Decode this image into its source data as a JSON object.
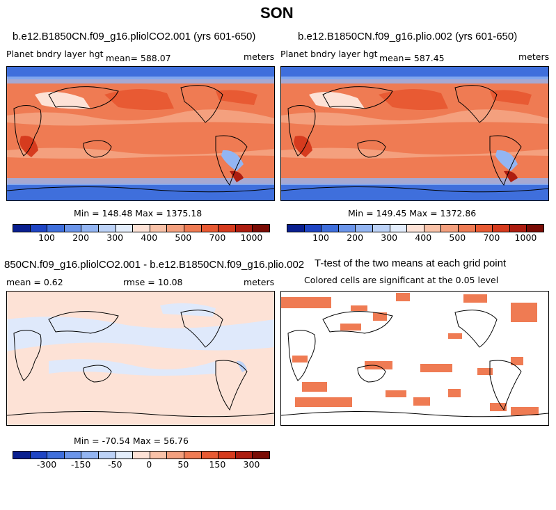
{
  "title": "SON",
  "panels": {
    "top_left": {
      "title": "b.e12.B1850CN.f09_g16.pliolCO2.001 (yrs 601-650)",
      "variable": "Planet bndry layer hgt",
      "mean": "mean= 588.07",
      "units": "meters",
      "minmax": "Min = 148.48 Max = 1375.18"
    },
    "top_right": {
      "title": "b.e12.B1850CN.f09_g16.plio.002 (yrs 601-650)",
      "variable": "Planet bndry layer hgt",
      "mean": "mean= 587.45",
      "units": "meters",
      "minmax": "Min = 149.45 Max = 1372.86"
    },
    "bottom_left": {
      "title": "850CN.f09_g16.pliolCO2.001 - b.e12.B1850CN.f09_g16.plio.002",
      "mean": "mean =    0.62",
      "rmse": "rmse =   10.08",
      "units": "meters",
      "minmax": "Min = -70.54 Max =  56.76"
    },
    "bottom_right": {
      "title": "T-test of the two means at each grid point",
      "subtitle": "Colored cells are significant at the 0.05 level"
    }
  },
  "colorbars": {
    "abs_colors": [
      "#0a1f8f",
      "#1f45c4",
      "#3f6fdc",
      "#6b95ea",
      "#93b5f2",
      "#bcd2f7",
      "#e3edfb",
      "#fde2d6",
      "#f9c2a8",
      "#f4a07e",
      "#ef7b53",
      "#e85a33",
      "#d63b1e",
      "#ad1d10",
      "#7a0c05"
    ],
    "abs_labels": [
      "100",
      "200",
      "300",
      "400",
      "500",
      "700",
      "1000"
    ],
    "diff_colors": [
      "#0a1f8f",
      "#1f45c4",
      "#3f6fdc",
      "#6b95ea",
      "#93b5f2",
      "#bcd2f7",
      "#e3edfb",
      "#fde2d6",
      "#f9c2a8",
      "#f4a07e",
      "#ef7b53",
      "#e85a33",
      "#d63b1e",
      "#ad1d10",
      "#7a0c05"
    ],
    "diff_labels": [
      "-300",
      "-150",
      "-50",
      "0",
      "50",
      "150",
      "300"
    ]
  },
  "map_colors": {
    "warm": "#ef7b53",
    "warm_light": "#f4a07e",
    "warm_dark": "#e85a33",
    "cold": "#3f6fdc",
    "cold_light": "#93b5f2",
    "diff_pos": "#fde2d6",
    "diff_neg": "#dfe9fb",
    "ttest": "#ef7b53"
  }
}
